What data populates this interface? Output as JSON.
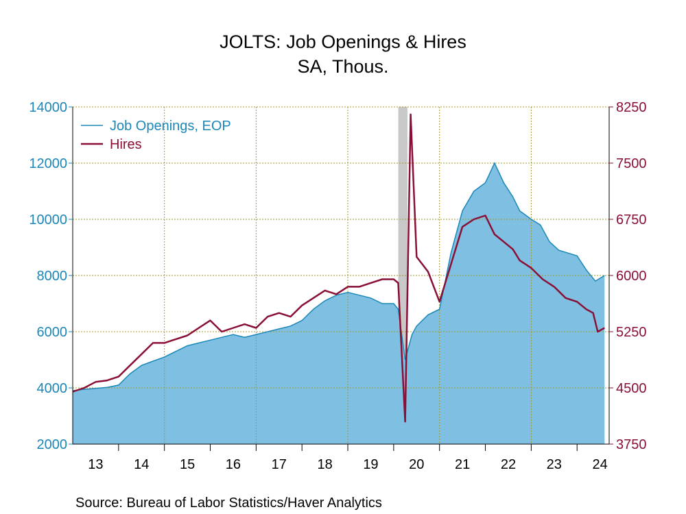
{
  "colors": {
    "openings_line": "#1a87b8",
    "openings_fill": "#7fc0e2",
    "hires_line": "#8a0f35",
    "left_axis": "#1a87b8",
    "right_axis": "#8a0f35",
    "grid": "#a39a2a",
    "recession": "#c8c8c8"
  },
  "chart_data": {
    "type": "area",
    "title": "JOLTS: Job Openings & Hires",
    "subtitle": "SA, Thous.",
    "source": "Source:  Bureau of Labor Statistics/Haver Analytics",
    "x_range": [
      2013.0,
      2024.7
    ],
    "x_tick_labels": [
      "13",
      "14",
      "15",
      "16",
      "17",
      "18",
      "19",
      "20",
      "21",
      "22",
      "23",
      "24"
    ],
    "y_left": {
      "min": 2000,
      "max": 14000,
      "ticks": [
        2000,
        4000,
        6000,
        8000,
        10000,
        12000,
        14000
      ]
    },
    "y_right": {
      "min": 3750,
      "max": 8250,
      "ticks": [
        3750,
        4500,
        5250,
        6000,
        6750,
        7500,
        8250
      ]
    },
    "grid": true,
    "legend_position": "top-left",
    "recession_band": [
      2020.1,
      2020.3
    ],
    "series": [
      {
        "name": "Job Openings, EOP",
        "axis": "left",
        "style": "area",
        "points": [
          [
            2013.0,
            3900
          ],
          [
            2013.25,
            3950
          ],
          [
            2013.5,
            3980
          ],
          [
            2013.75,
            4020
          ],
          [
            2014.0,
            4100
          ],
          [
            2014.25,
            4500
          ],
          [
            2014.5,
            4800
          ],
          [
            2014.75,
            4950
          ],
          [
            2015.0,
            5100
          ],
          [
            2015.25,
            5300
          ],
          [
            2015.5,
            5500
          ],
          [
            2015.75,
            5600
          ],
          [
            2016.0,
            5700
          ],
          [
            2016.25,
            5800
          ],
          [
            2016.5,
            5900
          ],
          [
            2016.75,
            5800
          ],
          [
            2017.0,
            5900
          ],
          [
            2017.25,
            6000
          ],
          [
            2017.5,
            6100
          ],
          [
            2017.75,
            6200
          ],
          [
            2018.0,
            6400
          ],
          [
            2018.25,
            6800
          ],
          [
            2018.5,
            7100
          ],
          [
            2018.75,
            7300
          ],
          [
            2019.0,
            7400
          ],
          [
            2019.25,
            7300
          ],
          [
            2019.5,
            7200
          ],
          [
            2019.75,
            7000
          ],
          [
            2020.0,
            7000
          ],
          [
            2020.1,
            6800
          ],
          [
            2020.25,
            5000
          ],
          [
            2020.4,
            5900
          ],
          [
            2020.5,
            6200
          ],
          [
            2020.75,
            6600
          ],
          [
            2021.0,
            6800
          ],
          [
            2021.25,
            8800
          ],
          [
            2021.5,
            10300
          ],
          [
            2021.75,
            11000
          ],
          [
            2022.0,
            11300
          ],
          [
            2022.2,
            12000
          ],
          [
            2022.4,
            11300
          ],
          [
            2022.6,
            10800
          ],
          [
            2022.75,
            10300
          ],
          [
            2023.0,
            10000
          ],
          [
            2023.2,
            9800
          ],
          [
            2023.4,
            9200
          ],
          [
            2023.6,
            8900
          ],
          [
            2023.8,
            8800
          ],
          [
            2024.0,
            8700
          ],
          [
            2024.2,
            8200
          ],
          [
            2024.4,
            7800
          ],
          [
            2024.6,
            8000
          ]
        ]
      },
      {
        "name": "Hires",
        "axis": "right",
        "style": "line",
        "points": [
          [
            2013.0,
            4450
          ],
          [
            2013.25,
            4500
          ],
          [
            2013.5,
            4580
          ],
          [
            2013.75,
            4600
          ],
          [
            2014.0,
            4650
          ],
          [
            2014.25,
            4800
          ],
          [
            2014.5,
            4950
          ],
          [
            2014.75,
            5100
          ],
          [
            2015.0,
            5100
          ],
          [
            2015.25,
            5150
          ],
          [
            2015.5,
            5200
          ],
          [
            2015.75,
            5300
          ],
          [
            2016.0,
            5400
          ],
          [
            2016.25,
            5250
          ],
          [
            2016.5,
            5300
          ],
          [
            2016.75,
            5350
          ],
          [
            2017.0,
            5300
          ],
          [
            2017.25,
            5450
          ],
          [
            2017.5,
            5500
          ],
          [
            2017.75,
            5450
          ],
          [
            2018.0,
            5600
          ],
          [
            2018.25,
            5700
          ],
          [
            2018.5,
            5800
          ],
          [
            2018.75,
            5750
          ],
          [
            2019.0,
            5850
          ],
          [
            2019.25,
            5850
          ],
          [
            2019.5,
            5900
          ],
          [
            2019.75,
            5950
          ],
          [
            2020.0,
            5950
          ],
          [
            2020.1,
            5900
          ],
          [
            2020.25,
            4050
          ],
          [
            2020.37,
            8150
          ],
          [
            2020.5,
            6250
          ],
          [
            2020.75,
            6050
          ],
          [
            2021.0,
            5650
          ],
          [
            2021.25,
            6150
          ],
          [
            2021.5,
            6650
          ],
          [
            2021.75,
            6750
          ],
          [
            2022.0,
            6800
          ],
          [
            2022.2,
            6550
          ],
          [
            2022.4,
            6450
          ],
          [
            2022.6,
            6350
          ],
          [
            2022.75,
            6200
          ],
          [
            2023.0,
            6100
          ],
          [
            2023.25,
            5950
          ],
          [
            2023.5,
            5850
          ],
          [
            2023.75,
            5700
          ],
          [
            2024.0,
            5650
          ],
          [
            2024.2,
            5550
          ],
          [
            2024.35,
            5500
          ],
          [
            2024.45,
            5250
          ],
          [
            2024.6,
            5300
          ]
        ]
      }
    ]
  }
}
